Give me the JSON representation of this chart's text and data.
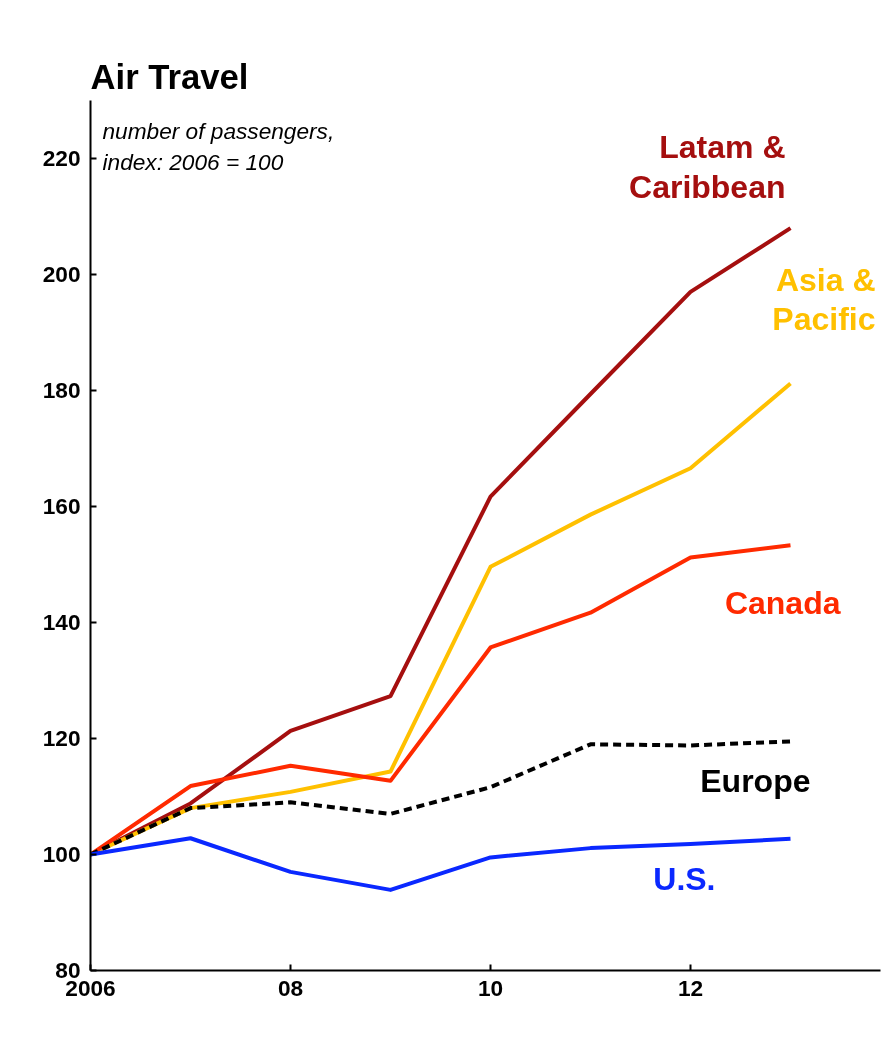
{
  "chart_data": {
    "type": "line",
    "title": "Air Travel",
    "annotations": [
      "number of passengers,\nindex: 2006 = 100"
    ],
    "x": [
      2006,
      2007,
      2008,
      2009,
      2010,
      2011,
      2012,
      2013
    ],
    "series": [
      {
        "name": "Latam &\nCaribbean",
        "color": "#a50f0f",
        "values": [
          100,
          108.8,
          121.3,
          127.3,
          161.7,
          179.4,
          197,
          208
        ]
      },
      {
        "name": "Asia &\nPacific",
        "color": "#ffc000",
        "values": [
          100,
          108,
          110.8,
          114.3,
          149.6,
          158.6,
          166.6,
          181.2
        ]
      },
      {
        "name": "Canada",
        "color": "#ff2a00",
        "values": [
          100,
          111.8,
          115.3,
          112.7,
          135.7,
          141.7,
          151.2,
          153.3
        ]
      },
      {
        "name": "Europe",
        "color": "#000000",
        "line_style": "dashed",
        "values": [
          100,
          108,
          109,
          107,
          111.6,
          119,
          118.8,
          119.5
        ]
      },
      {
        "name": "U.S.",
        "color": "#0a28ff",
        "values": [
          100,
          102.8,
          97,
          93.9,
          99.5,
          101.1,
          101.8,
          102.7
        ]
      }
    ],
    "xlim": [
      2006,
      2013.9
    ],
    "xticks": [
      2006,
      {
        "value": 2008,
        "label": "08"
      },
      {
        "value": 2010,
        "label": "10"
      },
      {
        "value": 2012,
        "label": "12"
      }
    ],
    "ylim": [
      80,
      230
    ],
    "yticks": [
      80,
      100,
      120,
      140,
      160,
      180,
      200,
      220
    ],
    "grid": false,
    "legend": false
  }
}
